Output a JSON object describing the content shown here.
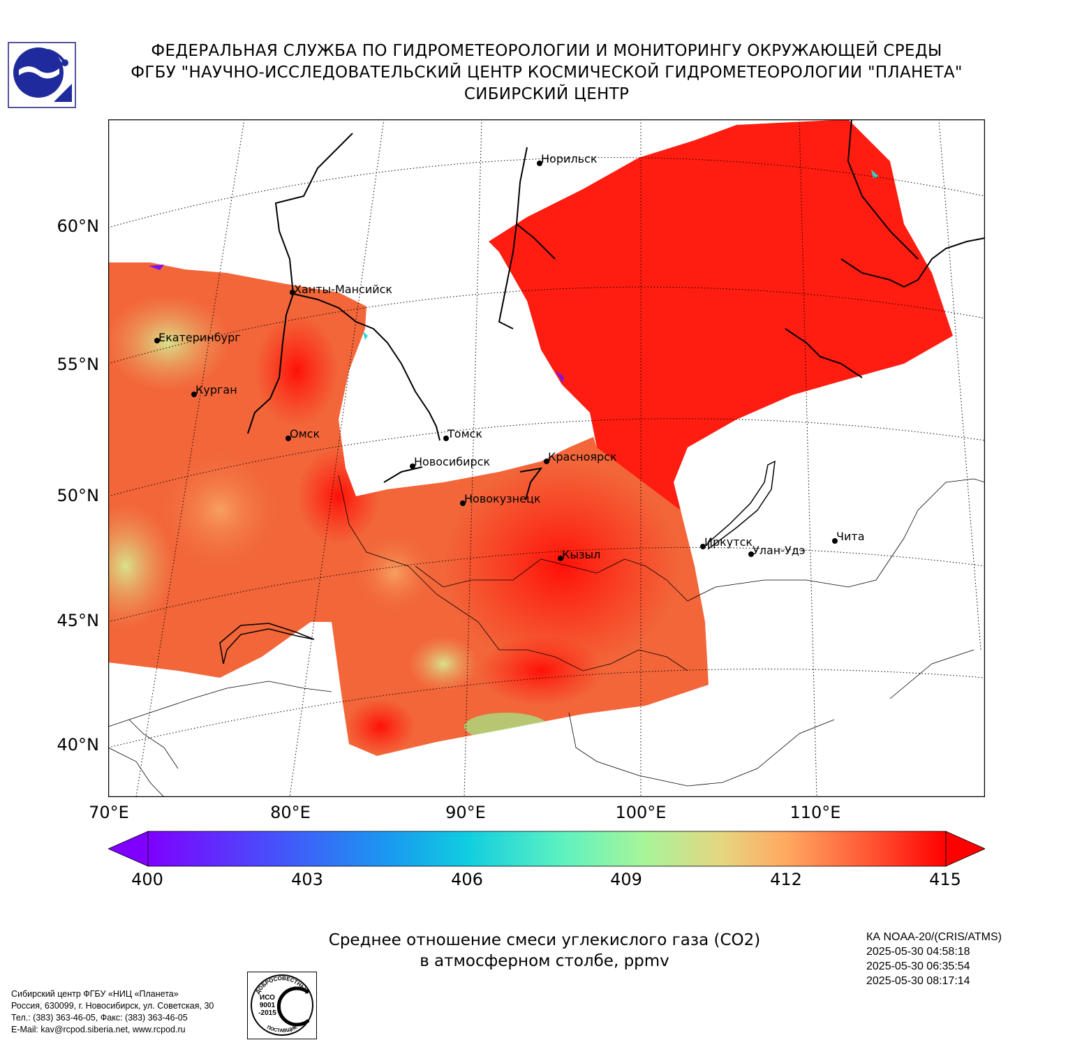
{
  "header": {
    "line1": "ФЕДЕРАЛЬНАЯ СЛУЖБА ПО ГИДРОМЕТЕОРОЛОГИИ И МОНИТОРИНГУ ОКРУЖАЮЩЕЙ СРЕДЫ",
    "line2": "ФГБУ \"НАУЧНО-ИССЛЕДОВАТЕЛЬСКИЙ ЦЕНТР КОСМИЧЕСКОЙ ГИДРОМЕТЕОРОЛОГИИ \"ПЛАНЕТА\"",
    "line3": "СИБИРСКИЙ ЦЕНТР"
  },
  "map": {
    "latitude_labels": [
      "60°N",
      "55°N",
      "50°N",
      "45°N",
      "40°N"
    ],
    "longitude_labels": [
      "70°E",
      "80°E",
      "90°E",
      "100°E",
      "110°E"
    ],
    "cities": [
      {
        "name": "Норильск"
      },
      {
        "name": "Ханты-Мансийск"
      },
      {
        "name": "Екатеринбург"
      },
      {
        "name": "Курган"
      },
      {
        "name": "Омск"
      },
      {
        "name": "Томск"
      },
      {
        "name": "Новосибирск"
      },
      {
        "name": "Красноярск"
      },
      {
        "name": "Новокузнецк"
      },
      {
        "name": "Иркутск"
      },
      {
        "name": "Улан-Удэ"
      },
      {
        "name": "Чита"
      },
      {
        "name": "Кызыл"
      }
    ],
    "field_colors": {
      "high": "#ff1a10",
      "mid": "#f5693a",
      "low": "#d8df8a",
      "min": "#7a12f0"
    }
  },
  "colorbar": {
    "ticks": [
      "400",
      "403",
      "406",
      "409",
      "412",
      "415"
    ],
    "range": [
      400,
      415
    ],
    "extend": "both",
    "colormap": "rainbow"
  },
  "product": {
    "title_line1": "Среднее отношение смеси углекислого газа (CO2)",
    "title_line2": "в атмосферном столбе, ppmv"
  },
  "satellite": {
    "name": "КА NOAA-20/(CRIS/ATMS)",
    "times": [
      "2025-05-30 04:58:18",
      "2025-05-30 06:35:54",
      "2025-05-30 08:17:14"
    ]
  },
  "contacts": {
    "line1": "Сибирский центр ФГБУ «НИЦ «Планета»",
    "line2": "Россия, 630099, г. Новосибирск, ул. Советская, 30",
    "line3": "Тел.: (383) 363-46-05, Факс: (383) 363-46-05",
    "line4": "E-Mail: kav@rcpod.siberia.net, www.rcpod.ru"
  },
  "iso_badge": {
    "top_text": "ДОБРОСОВЕСТНЫЙ",
    "center_text": "ИСО 9001 -2015",
    "bottom_text": "ПОСТАВЩИК"
  }
}
